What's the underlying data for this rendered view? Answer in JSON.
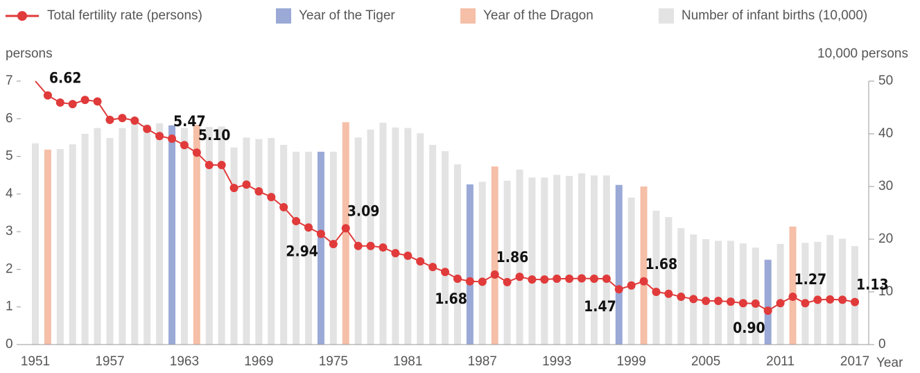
{
  "chart_data": {
    "type": "bar-line",
    "categories": [
      1951,
      null,
      null,
      null,
      null,
      null,
      1957,
      null,
      null,
      null,
      null,
      null,
      1963,
      null,
      null,
      null,
      null,
      null,
      1969,
      null,
      null,
      null,
      null,
      null,
      1975,
      null,
      null,
      null,
      null,
      null,
      1981,
      null,
      null,
      null,
      null,
      null,
      1987,
      null,
      null,
      null,
      null,
      null,
      1993,
      null,
      null,
      null,
      null,
      null,
      1999,
      null,
      null,
      null,
      null,
      null,
      2005,
      null,
      null,
      null,
      null,
      null,
      2011,
      null,
      null,
      null,
      null,
      null,
      2017
    ],
    "x_label": "Year",
    "y_label": "persons",
    "y2_label": "10,000 persons",
    "ylim": [
      0,
      7
    ],
    "yticks": [
      0,
      1,
      2,
      3,
      4,
      5,
      6,
      7
    ],
    "y2lim": [
      0,
      50
    ],
    "y2ticks": [
      0,
      10,
      20,
      30,
      40,
      50
    ],
    "series": [
      {
        "name": "Total fertility rate (persons)",
        "type": "line",
        "axis": "y",
        "color": "#e03a3a",
        "values": [
          7.0,
          6.62,
          6.43,
          6.39,
          6.5,
          6.46,
          5.97,
          6.02,
          5.95,
          5.73,
          5.54,
          5.47,
          5.3,
          5.1,
          4.77,
          4.77,
          4.16,
          4.25,
          4.07,
          3.92,
          3.65,
          3.28,
          3.11,
          2.94,
          2.67,
          3.09,
          2.62,
          2.62,
          2.58,
          2.43,
          2.36,
          2.21,
          2.06,
          1.93,
          1.75,
          1.68,
          1.67,
          1.86,
          1.66,
          1.8,
          1.73,
          1.73,
          1.75,
          1.75,
          1.76,
          1.75,
          1.75,
          1.47,
          1.57,
          1.68,
          1.4,
          1.35,
          1.27,
          1.21,
          1.16,
          1.16,
          1.14,
          1.1,
          1.09,
          0.9,
          1.1,
          1.27,
          1.1,
          1.19,
          1.2,
          1.19,
          1.13
        ],
        "value_labels": [
          null,
          "6.62",
          null,
          null,
          null,
          null,
          null,
          null,
          null,
          null,
          null,
          "5.47",
          null,
          "5.10",
          null,
          null,
          null,
          null,
          null,
          null,
          null,
          null,
          null,
          "2.94",
          null,
          "3.09",
          null,
          null,
          null,
          null,
          null,
          null,
          null,
          null,
          null,
          "1.68",
          null,
          "1.86",
          null,
          null,
          null,
          null,
          null,
          null,
          null,
          null,
          null,
          "1.47",
          null,
          "1.68",
          null,
          null,
          null,
          null,
          null,
          null,
          null,
          null,
          null,
          "0.90",
          null,
          "1.27",
          null,
          null,
          null,
          null,
          "1.13"
        ]
      },
      {
        "name": "Year of the Tiger",
        "type": "bar",
        "axis": "y2",
        "color": "#9aa9d6",
        "values": [
          null,
          null,
          null,
          null,
          null,
          null,
          null,
          null,
          null,
          null,
          null,
          41.6,
          null,
          null,
          null,
          null,
          null,
          null,
          null,
          null,
          null,
          null,
          null,
          36.6,
          null,
          null,
          null,
          null,
          null,
          null,
          null,
          null,
          null,
          null,
          null,
          30.4,
          null,
          null,
          null,
          null,
          null,
          null,
          null,
          null,
          null,
          null,
          null,
          30.3,
          null,
          null,
          null,
          null,
          null,
          null,
          null,
          null,
          null,
          null,
          null,
          16.1,
          null,
          null,
          null,
          null,
          null,
          null,
          null
        ]
      },
      {
        "name": "Year of the Dragon",
        "type": "bar",
        "axis": "y2",
        "color": "#f5bfa8",
        "values": [
          null,
          37.0,
          null,
          null,
          null,
          null,
          null,
          null,
          null,
          null,
          null,
          null,
          null,
          41.7,
          null,
          null,
          null,
          null,
          null,
          null,
          null,
          null,
          null,
          null,
          null,
          42.2,
          null,
          null,
          null,
          null,
          null,
          null,
          null,
          null,
          null,
          null,
          null,
          33.8,
          null,
          null,
          null,
          null,
          null,
          null,
          null,
          null,
          null,
          null,
          null,
          30.0,
          null,
          null,
          null,
          null,
          null,
          null,
          null,
          null,
          null,
          null,
          null,
          22.4,
          null,
          null,
          null,
          null,
          null
        ]
      },
      {
        "name": "Number of infant births (10,000)",
        "type": "bar",
        "axis": "y2",
        "color": "#e3e3e3",
        "values": [
          38.2,
          null,
          37.1,
          38.0,
          40.0,
          41.1,
          39.2,
          41.1,
          42.0,
          41.8,
          42.0,
          null,
          41.1,
          null,
          41.3,
          41.4,
          37.4,
          39.3,
          39.0,
          39.2,
          37.9,
          36.6,
          36.6,
          null,
          36.6,
          null,
          39.3,
          40.8,
          42.1,
          41.2,
          41.1,
          40.1,
          37.9,
          36.7,
          34.2,
          null,
          30.9,
          null,
          31.1,
          33.2,
          31.7,
          31.7,
          32.2,
          32.0,
          32.5,
          32.1,
          32.1,
          null,
          27.9,
          null,
          25.4,
          24.2,
          22.1,
          20.9,
          20.0,
          19.7,
          19.7,
          19.2,
          18.4,
          null,
          19.1,
          null,
          19.3,
          19.5,
          20.8,
          20.1,
          18.7
        ]
      }
    ]
  }
}
